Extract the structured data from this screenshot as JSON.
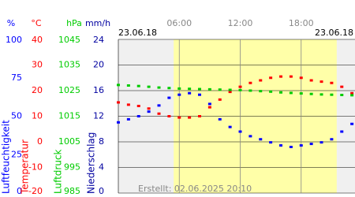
{
  "chart_data": {
    "type": "line",
    "date_left": "23.06.18",
    "date_right": "23.06.18",
    "footer": "Erstellt: 02.06.2025 20:10",
    "daylight": [
      5.45,
      21.5
    ],
    "xlim": [
      0,
      23.3
    ],
    "xticks": [
      {
        "value": 6,
        "label": "06:00"
      },
      {
        "value": 12,
        "label": "12:00"
      },
      {
        "value": 18,
        "label": "18:00"
      }
    ],
    "x": [
      0,
      1,
      2,
      3,
      4,
      5,
      6,
      7,
      8,
      9,
      10,
      11,
      12,
      13,
      14,
      15,
      16,
      17,
      18,
      19,
      20,
      21,
      22,
      23
    ],
    "axes": [
      {
        "unit": "%",
        "label": "Luftfeuchtigkeit",
        "color": "#0000ff",
        "lim": [
          0,
          100
        ],
        "ticks": [
          0,
          25,
          50,
          75,
          100
        ],
        "values": [
          46,
          48,
          50,
          53,
          57,
          62,
          64,
          65,
          64,
          58,
          48,
          43,
          40,
          37,
          35,
          33,
          31,
          30,
          31,
          32,
          33,
          35,
          40,
          45
        ]
      },
      {
        "unit": "°C",
        "label": "Temperatur",
        "color": "#ff0000",
        "lim": [
          -20,
          40
        ],
        "ticks": [
          -20,
          -10,
          0,
          10,
          20,
          30,
          40
        ],
        "values": [
          15.4,
          14.5,
          14,
          13,
          11,
          10,
          9.5,
          9.5,
          10,
          13.5,
          16.5,
          19.5,
          21.5,
          23,
          24,
          25,
          25.5,
          25.5,
          25,
          24,
          23.5,
          23,
          21.5,
          19
        ]
      },
      {
        "unit": "hPa",
        "label": "Luftdruck",
        "color": "#00cc00",
        "lim": [
          985,
          1045
        ],
        "ticks": [
          985,
          995,
          1005,
          1015,
          1025,
          1035,
          1045
        ],
        "values": [
          1027.2,
          1027,
          1026.8,
          1026.5,
          1026.2,
          1026,
          1025.8,
          1025.7,
          1025.6,
          1025.5,
          1025.4,
          1025.3,
          1025.2,
          1025,
          1024.8,
          1024.6,
          1024.3,
          1024.1,
          1023.9,
          1023.7,
          1023.5,
          1023.4,
          1023.3,
          1023.2
        ]
      },
      {
        "unit": "mm/h",
        "label": "Niederschlag",
        "color": "#0000a0",
        "lim": [
          0,
          24
        ],
        "ticks": [
          0,
          4,
          8,
          12,
          16,
          20,
          24
        ]
      }
    ]
  }
}
